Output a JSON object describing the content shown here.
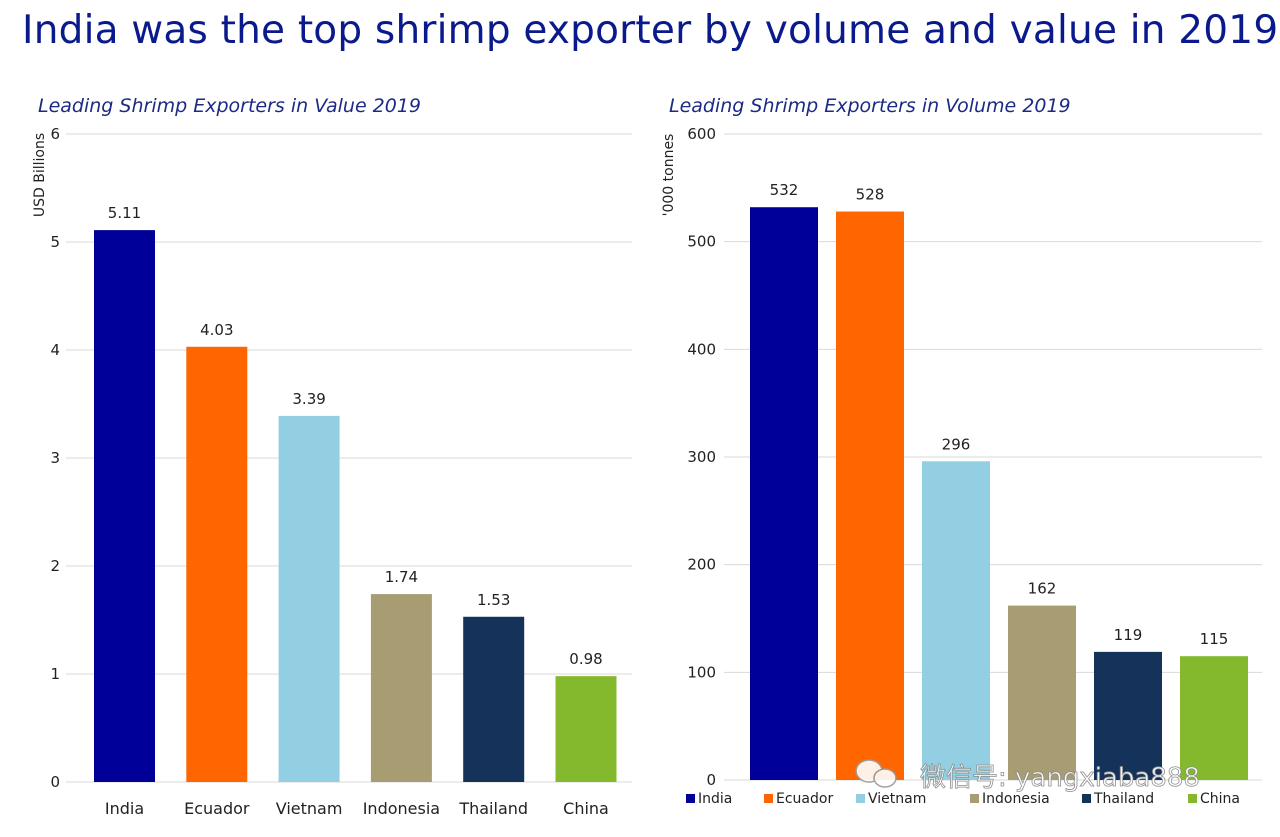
{
  "page": {
    "title": "India was the top shrimp exporter by volume and value in 2019"
  },
  "watermark": {
    "text": "微信号: yangxiaba888",
    "icon": "wechat-icon"
  },
  "chart_data": [
    {
      "type": "bar",
      "title": "Leading Shrimp Exporters in Value 2019",
      "ylabel": "USD Billions",
      "xlabel": "",
      "categories": [
        "India",
        "Ecuador",
        "Vietnam",
        "Indonesia",
        "Thailand",
        "China"
      ],
      "values": [
        5.11,
        4.03,
        3.39,
        1.74,
        1.53,
        0.98
      ],
      "data_labels": [
        "5.11",
        "4.03",
        "3.39",
        "1.74",
        "1.53",
        "0.98"
      ],
      "colors": [
        "#000099",
        "#ff6600",
        "#92cfe3",
        "#a89c72",
        "#14325a",
        "#84b92e"
      ],
      "ylim": [
        0,
        6
      ],
      "yticks": [
        0,
        1,
        2,
        3,
        4,
        5,
        6
      ],
      "grid": true,
      "legend": "none"
    },
    {
      "type": "bar",
      "title": "Leading Shrimp Exporters in Volume 2019",
      "ylabel": "'000 tonnes",
      "xlabel": "",
      "categories": [
        "India",
        "Ecuador",
        "Vietnam",
        "Indonesia",
        "Thailand",
        "China"
      ],
      "values": [
        532,
        528,
        296,
        162,
        119,
        115
      ],
      "data_labels": [
        "532",
        "528",
        "296",
        "162",
        "119",
        "115"
      ],
      "colors": [
        "#000099",
        "#ff6600",
        "#92cfe3",
        "#a89c72",
        "#14325a",
        "#84b92e"
      ],
      "ylim": [
        0,
        600
      ],
      "yticks": [
        0,
        100,
        200,
        300,
        400,
        500,
        600
      ],
      "grid": true,
      "legend": "bottom"
    }
  ]
}
